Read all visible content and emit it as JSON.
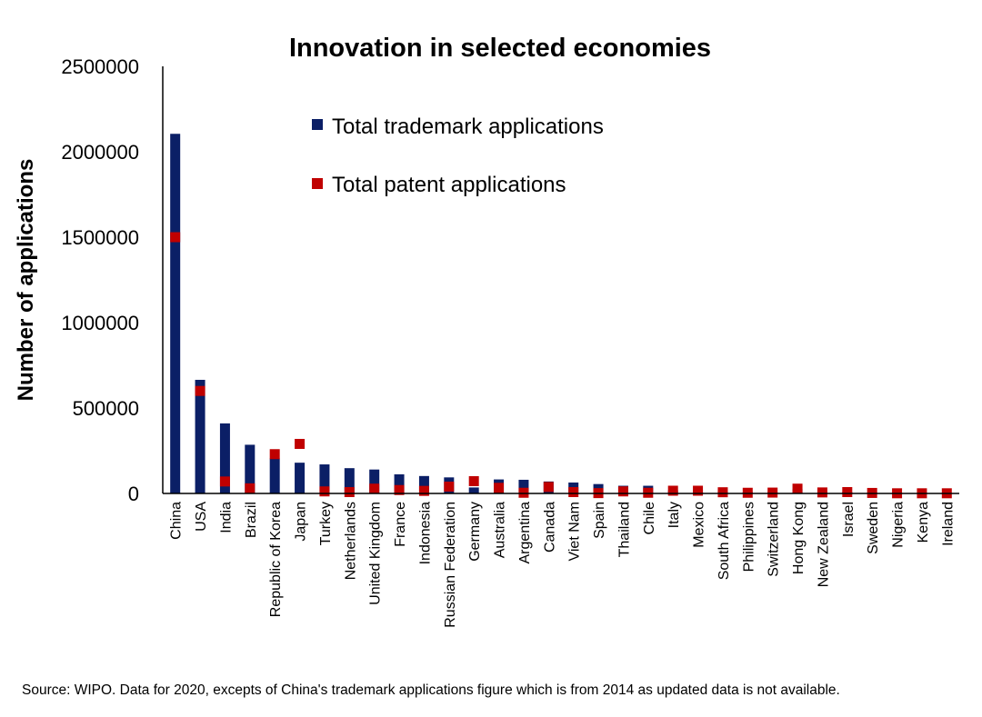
{
  "chart_data": {
    "type": "bar",
    "title": "Innovation in selected economies",
    "ylabel": "Number of applications",
    "xlabel": "",
    "ylim": [
      0,
      2500000
    ],
    "yticks": [
      0,
      500000,
      1000000,
      1500000,
      2000000,
      2500000
    ],
    "ytick_labels": [
      "0",
      "500000",
      "1000000",
      "1500000",
      "2000000",
      "2500000"
    ],
    "grid": false,
    "legend_position": "top-center",
    "categories": [
      "China",
      "USA",
      "India",
      "Brazil",
      "Republic of Korea",
      "Japan",
      "Turkey",
      "Netherlands",
      "United Kingdom",
      "France",
      "Indonesia",
      "Russian Federation",
      "Germany",
      "Australia",
      "Argentina",
      "Canada",
      "Viet Nam",
      "Spain",
      "Thailand",
      "Chile",
      "Italy",
      "Mexico",
      "South Africa",
      "Philippines",
      "Switzerland",
      "Hong Kong",
      "New Zealand",
      "Israel",
      "Sweden",
      "Nigeria",
      "Kenya",
      "Ireland"
    ],
    "series": [
      {
        "name": "Total trademark applications",
        "type": "bar",
        "color": "#0b1f66",
        "values": [
          2105000,
          665000,
          410000,
          285000,
          205000,
          180000,
          170000,
          148000,
          140000,
          112000,
          102000,
          94000,
          35000,
          82000,
          80000,
          70000,
          64000,
          55000,
          45000,
          45000,
          18000,
          20000,
          12000,
          8000,
          8000,
          26000,
          8000,
          9000,
          5000,
          3000,
          2000,
          2000
        ]
      },
      {
        "name": "Total patent applications",
        "type": "scatter",
        "color": "#c00000",
        "values": [
          1500000,
          600000,
          70000,
          30000,
          230000,
          290000,
          12000,
          8000,
          28000,
          20000,
          15000,
          40000,
          72000,
          33000,
          4000,
          38000,
          8000,
          2000,
          12000,
          4000,
          16000,
          16000,
          7000,
          4000,
          5000,
          28000,
          6000,
          8000,
          3000,
          1000,
          1000,
          1000
        ]
      }
    ],
    "source_note": "Source: WIPO. Data for 2020, excepts of China's trademark applications figure which is from 2014 as updated data is not available."
  }
}
